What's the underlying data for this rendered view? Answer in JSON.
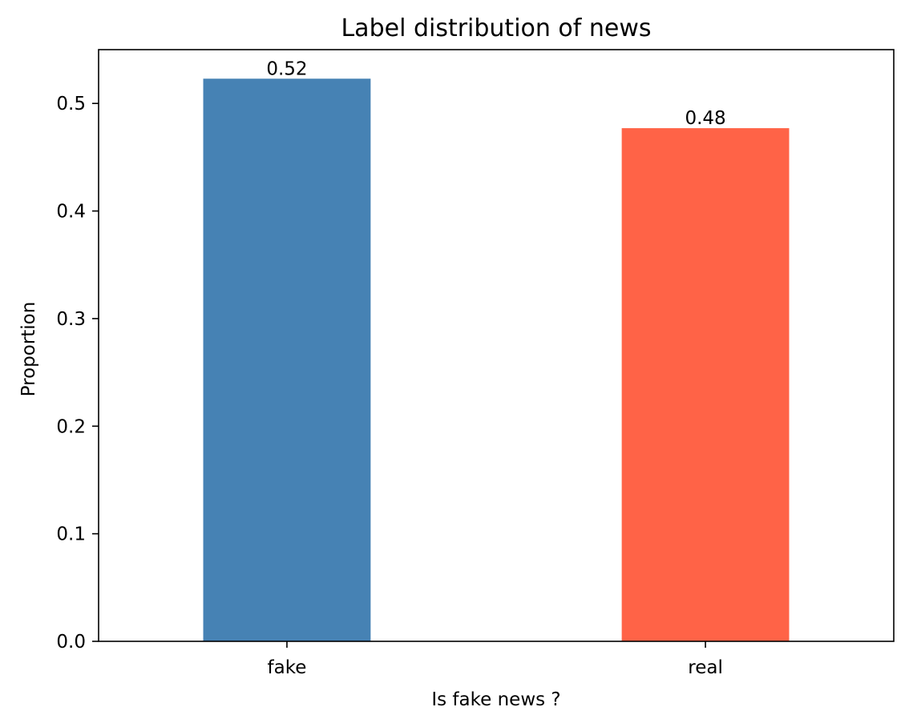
{
  "chart_data": {
    "type": "bar",
    "title": "Label distribution of news",
    "xlabel": "Is fake news ?",
    "ylabel": "Proportion",
    "categories": [
      "fake",
      "real"
    ],
    "values": [
      0.523,
      0.477
    ],
    "data_labels": [
      "0.52",
      "0.48"
    ],
    "colors": [
      "#4682b4",
      "#ff6347"
    ],
    "ylim": [
      0,
      0.55
    ],
    "yticks": [
      0.0,
      0.1,
      0.2,
      0.3,
      0.4,
      0.5
    ],
    "ytick_labels": [
      "0.0",
      "0.1",
      "0.2",
      "0.3",
      "0.4",
      "0.5"
    ],
    "grid": false,
    "legend": "none"
  }
}
